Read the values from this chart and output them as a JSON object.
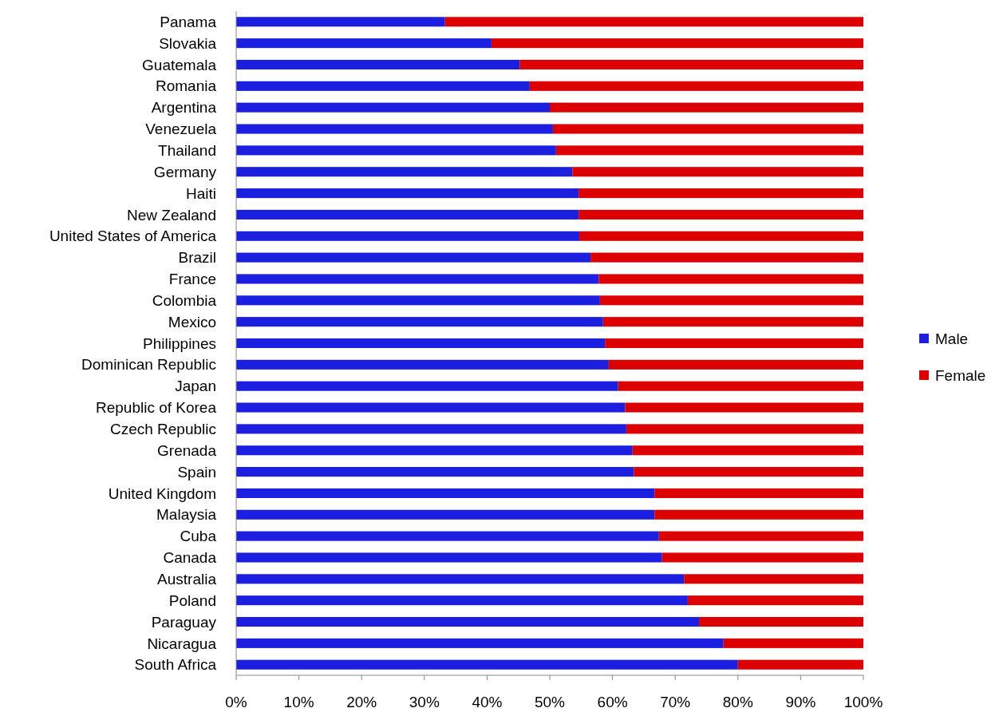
{
  "chart_data": {
    "type": "bar",
    "orientation": "horizontal",
    "stacked": true,
    "categories": [
      "Panama",
      "Slovakia",
      "Guatemala",
      "Romania",
      "Argentina",
      "Venezuela",
      "Thailand",
      "Germany",
      "Haiti",
      "New Zealand",
      "United States of America",
      "Brazil",
      "France",
      "Colombia",
      "Mexico",
      "Philippines",
      "Dominican Republic",
      "Japan",
      "Republic of Korea",
      "Czech Republic",
      "Grenada",
      "Spain",
      "United Kingdom",
      "Malaysia",
      "Cuba",
      "Canada",
      "Australia",
      "Poland",
      "Paraguay",
      "Nicaragua",
      "South Africa"
    ],
    "series": [
      {
        "name": "Male",
        "color": "#1c1ee0",
        "values": [
          33.3,
          40.7,
          45.2,
          46.8,
          50.0,
          50.5,
          51.0,
          53.6,
          54.6,
          54.6,
          54.7,
          56.5,
          57.8,
          58.0,
          58.5,
          58.8,
          59.4,
          60.9,
          62.0,
          62.2,
          63.2,
          63.4,
          66.7,
          66.7,
          67.4,
          67.9,
          71.4,
          72.0,
          73.8,
          77.7,
          80.0
        ]
      },
      {
        "name": "Female",
        "color": "#dd0000",
        "values": [
          66.7,
          59.3,
          54.8,
          53.2,
          50.0,
          49.5,
          49.0,
          46.4,
          45.4,
          45.4,
          45.3,
          43.5,
          42.2,
          42.0,
          41.5,
          41.2,
          40.6,
          39.1,
          38.0,
          37.8,
          36.8,
          36.6,
          33.3,
          33.3,
          32.6,
          32.1,
          28.6,
          28.0,
          26.2,
          22.3,
          20.0
        ]
      }
    ],
    "xlim": [
      0,
      100
    ],
    "xticks": [
      {
        "value": 0,
        "label": "0%"
      },
      {
        "value": 10,
        "label": "10%"
      },
      {
        "value": 20,
        "label": "20%"
      },
      {
        "value": 30,
        "label": "30%"
      },
      {
        "value": 40,
        "label": "40%"
      },
      {
        "value": 50,
        "label": "50%"
      },
      {
        "value": 60,
        "label": "60%"
      },
      {
        "value": 70,
        "label": "70%"
      },
      {
        "value": 80,
        "label": "80%"
      },
      {
        "value": 90,
        "label": "90%"
      },
      {
        "value": 100,
        "label": "100%"
      }
    ],
    "legend": "right"
  }
}
